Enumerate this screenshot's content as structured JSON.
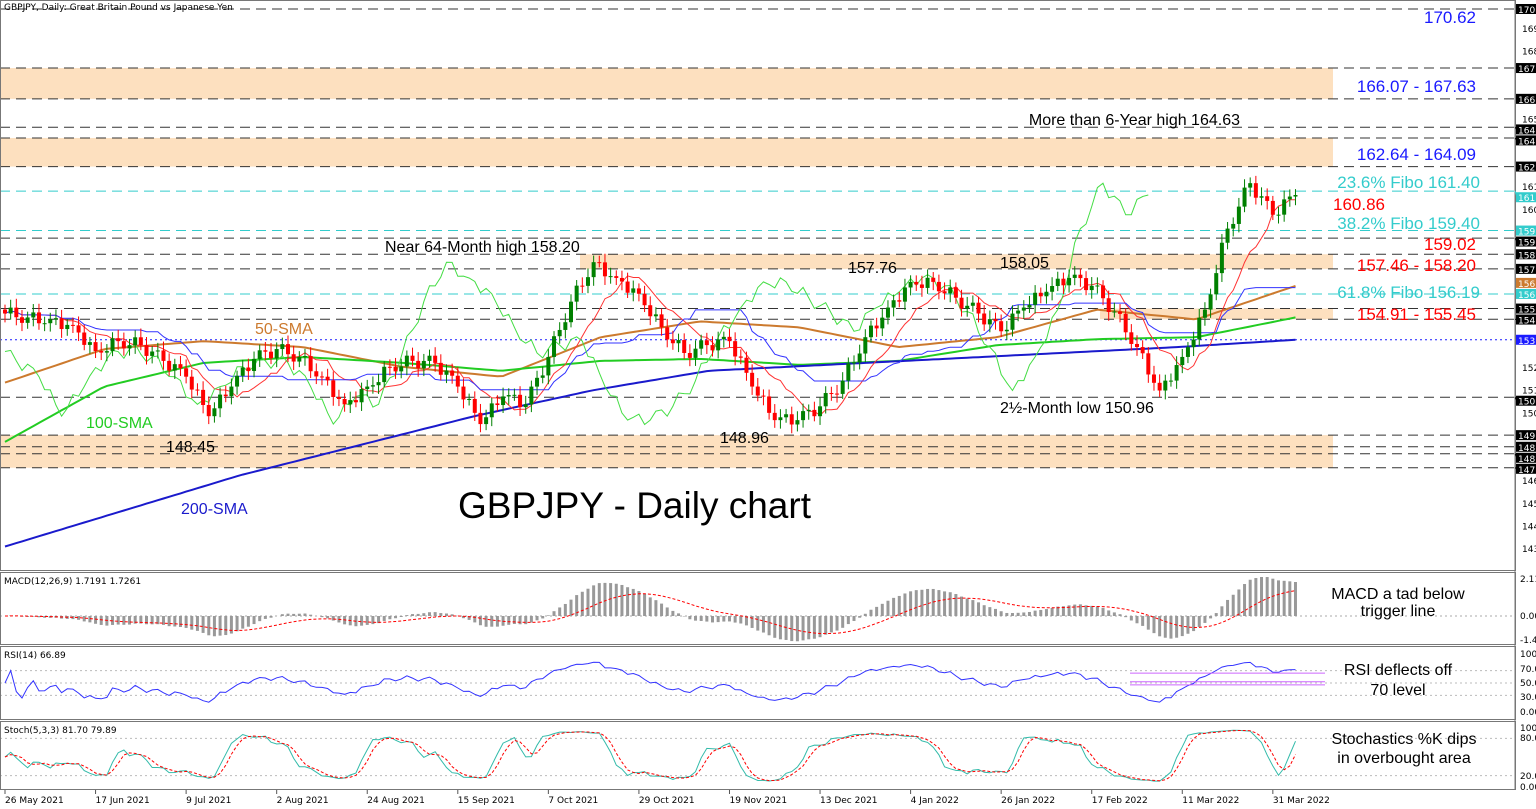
{
  "window": {
    "title": "GBPJPY, Daily:  Great Britain Pound vs Japanese Yen"
  },
  "chart_title": "GBPJPY - Daily chart",
  "chart_data": {
    "type": "candlestick",
    "symbol": "GBPJPY",
    "timeframe": "Daily",
    "ylim": [
      143.0,
      170.9
    ],
    "grid": false,
    "x_ticks": [
      "26 May 2021",
      "17 Jun 2021",
      "9 Jul 2021",
      "2 Aug 2021",
      "24 Aug 2021",
      "15 Sep 2021",
      "7 Oct 2021",
      "29 Oct 2021",
      "19 Nov 2021",
      "13 Dec 2021",
      "4 Jan 2022",
      "26 Jan 2022",
      "17 Feb 2022",
      "11 Mar 2022",
      "31 Mar 2022"
    ],
    "closes": [
      155.2,
      155.0,
      154.9,
      154.6,
      153.3,
      153.8,
      153.6,
      152.8,
      152.0,
      150.0,
      151.5,
      152.9,
      153.4,
      153.0,
      152.0,
      150.6,
      151.5,
      152.5,
      152.8,
      152.7,
      151.5,
      149.6,
      151.0,
      150.6,
      153.0,
      155.8,
      157.8,
      157.0,
      156.2,
      154.5,
      153.2,
      153.6,
      153.8,
      151.5,
      149.8,
      149.8,
      150.5,
      151.8,
      154.0,
      155.5,
      156.8,
      156.8,
      156.0,
      155.2,
      154.3,
      155.5,
      156.3,
      157.0,
      156.6,
      155.3,
      153.5,
      151.3,
      153.0,
      155.4,
      159.5,
      161.8,
      160.2,
      161.2
    ],
    "colors": {
      "bull": "#008000",
      "bear": "#ff0000"
    },
    "sma": [
      {
        "name": "50-SMA",
        "color": "#cc7a2e",
        "values": [
          151.7,
          153.4,
          153.8,
          153.5,
          152.5,
          152.0,
          154.0,
          154.8,
          154.5,
          153.5,
          154.0,
          155.4,
          154.9,
          156.6
        ]
      },
      {
        "name": "100-SMA",
        "color": "#22cc22",
        "values": [
          148.7,
          151.5,
          152.7,
          153.0,
          152.7,
          152.3,
          152.8,
          152.9,
          152.6,
          152.8,
          153.6,
          153.9,
          154.0,
          155.0
        ]
      },
      {
        "name": "200-SMA",
        "color": "#1a1acc",
        "values": [
          143.4,
          145.2,
          147.0,
          148.5,
          150.0,
          151.3,
          152.3,
          152.6,
          152.9,
          153.2,
          153.5,
          153.87
        ]
      }
    ],
    "levels": {
      "resistance_support": [
        "170.620",
        "167.630",
        "166.070",
        "164.630",
        "164.090",
        "162.640",
        "159.020",
        "158.200",
        "157.460",
        "155.450",
        "154.910",
        "150.960",
        "149.040",
        "148.450",
        "148.100",
        "147.390"
      ],
      "fibonacci": [
        "161.400",
        "159.400",
        "156.190"
      ],
      "ma_marker_blue": "153.870",
      "ma_marker_orange": "156.750"
    },
    "zones": [
      [
        166.07,
        167.63
      ],
      [
        162.64,
        164.09
      ],
      [
        157.46,
        158.2
      ],
      [
        154.91,
        155.45
      ],
      [
        147.39,
        149.04
      ]
    ],
    "price_axis_ticks": [
      "169.660",
      "168.515",
      "165.080",
      "161.645",
      "160.500",
      "152.485",
      "151.340",
      "150.195",
      "146.760",
      "145.615",
      "144.470",
      "143.325"
    ],
    "annotations": {
      "top": "170.62",
      "zone_top": "166.07 - 167.63",
      "six_year_high": "More than 6-Year high 164.63",
      "zone_2": "162.64 - 164.09",
      "fibo_236": "23.6% Fibo 161.40",
      "level_16086": "160.86",
      "fibo_382": "38.2% Fibo 159.40",
      "level_15902": "159.02",
      "zone_3": "157.46 - 158.20",
      "fibo_618": "61.8% Fibo 156.19",
      "zone_4": "154.91 - 155.45",
      "near_64m_high": "Near 64-Month high 158.20",
      "peak_15776": "157.76",
      "peak_15805": "158.05",
      "low_2_5m": "2½-Month low 150.96",
      "low_14896": "148.96",
      "low_14845": "148.45",
      "sma50": "50-SMA",
      "sma100": "100-SMA",
      "sma200": "200-SMA"
    },
    "indicators": {
      "macd": {
        "label": "MACD(12,26,9) 1.7191 1.7261",
        "ticks": [
          "2.1115",
          "0.0000",
          "-1.4036"
        ],
        "comment": "MACD a tad below",
        "comment2": "trigger line",
        "range": [
          -1.4036,
          2.1115
        ]
      },
      "rsi": {
        "label": "RSI(14) 66.89",
        "ticks": [
          "100.00",
          "70.00",
          "50.00",
          "30.00",
          "0.00"
        ],
        "comment": "RSI deflects off",
        "comment2": "70 level"
      },
      "stoch": {
        "label": "Stoch(5,3,3) 81.70 79.89",
        "ticks": [
          "100.00",
          "80.00",
          "20.00",
          "0.00"
        ],
        "comment": "Stochastics %K dips",
        "comment2": "in overbought area"
      }
    }
  }
}
